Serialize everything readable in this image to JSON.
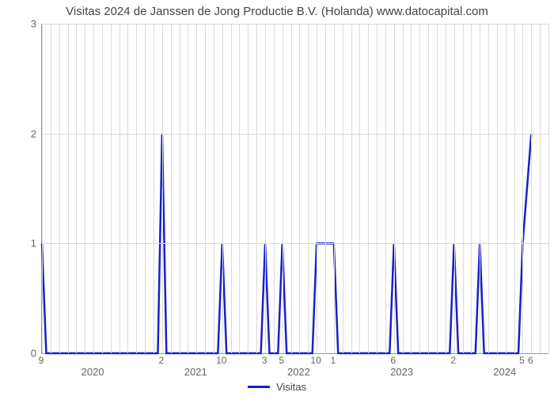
{
  "title": "Visitas 2024 de Janssen de Jong Productie B.V. (Holanda) www.datocapital.com",
  "chart": {
    "type": "line",
    "x_range_months": 60,
    "ylim": [
      0,
      3
    ],
    "ytick_step": 1,
    "yticks": [
      0,
      1,
      2,
      3
    ],
    "year_labels": [
      "2020",
      "2021",
      "2022",
      "2023",
      "2024"
    ],
    "year_month_positions": [
      6,
      18,
      30,
      42,
      54
    ],
    "month_columns": 60,
    "background_color": "#ffffff",
    "grid_color": "#d9d9d9",
    "axis_color": "#999999",
    "tick_font_color": "#666666",
    "tick_fontsize": 13,
    "title_fontsize": 15,
    "line_color": "#1920c8",
    "line_width": 2.5,
    "legend_label": "Visitas",
    "points": [
      {
        "m": 0,
        "v": 1,
        "lbl": "9"
      },
      {
        "m": 1,
        "v": 0
      },
      {
        "m": 2,
        "v": 0
      },
      {
        "m": 3,
        "v": 0
      },
      {
        "m": 4,
        "v": 0
      },
      {
        "m": 5,
        "v": 0
      },
      {
        "m": 6,
        "v": 0
      },
      {
        "m": 7,
        "v": 0
      },
      {
        "m": 8,
        "v": 0
      },
      {
        "m": 9,
        "v": 0
      },
      {
        "m": 10,
        "v": 0
      },
      {
        "m": 11,
        "v": 0
      },
      {
        "m": 12,
        "v": 0
      },
      {
        "m": 13,
        "v": 0
      },
      {
        "m": 14,
        "v": 2,
        "lbl": "2"
      },
      {
        "m": 15,
        "v": 0
      },
      {
        "m": 16,
        "v": 0
      },
      {
        "m": 17,
        "v": 0
      },
      {
        "m": 18,
        "v": 0
      },
      {
        "m": 19,
        "v": 0
      },
      {
        "m": 20,
        "v": 0
      },
      {
        "m": 21,
        "v": 1,
        "lbl": "10"
      },
      {
        "m": 22,
        "v": 0
      },
      {
        "m": 23,
        "v": 0
      },
      {
        "m": 24,
        "v": 0
      },
      {
        "m": 25,
        "v": 0
      },
      {
        "m": 26,
        "v": 1,
        "lbl": "3"
      },
      {
        "m": 27,
        "v": 0
      },
      {
        "m": 28,
        "v": 1,
        "lbl": "5"
      },
      {
        "m": 29,
        "v": 0
      },
      {
        "m": 30,
        "v": 0
      },
      {
        "m": 31,
        "v": 0
      },
      {
        "m": 32,
        "v": 1,
        "lbl": "10"
      },
      {
        "m": 34,
        "v": 1,
        "lbl": "1"
      },
      {
        "m": 35,
        "v": 0
      },
      {
        "m": 36,
        "v": 0
      },
      {
        "m": 37,
        "v": 0
      },
      {
        "m": 38,
        "v": 0
      },
      {
        "m": 39,
        "v": 0
      },
      {
        "m": 40,
        "v": 0
      },
      {
        "m": 41,
        "v": 1,
        "lbl": "6"
      },
      {
        "m": 42,
        "v": 0
      },
      {
        "m": 43,
        "v": 0
      },
      {
        "m": 44,
        "v": 0
      },
      {
        "m": 45,
        "v": 0
      },
      {
        "m": 46,
        "v": 0
      },
      {
        "m": 47,
        "v": 0
      },
      {
        "m": 48,
        "v": 1,
        "lbl": "2"
      },
      {
        "m": 49,
        "v": 0
      },
      {
        "m": 50,
        "v": 0
      },
      {
        "m": 51,
        "v": 1
      },
      {
        "m": 52,
        "v": 0
      },
      {
        "m": 53,
        "v": 0
      },
      {
        "m": 54,
        "v": 0
      },
      {
        "m": 55,
        "v": 0
      },
      {
        "m": 56,
        "v": 1,
        "lbl": "5"
      },
      {
        "m": 57,
        "v": 2,
        "lbl": "6"
      }
    ],
    "flat_segments": [
      [
        32,
        34
      ]
    ]
  }
}
